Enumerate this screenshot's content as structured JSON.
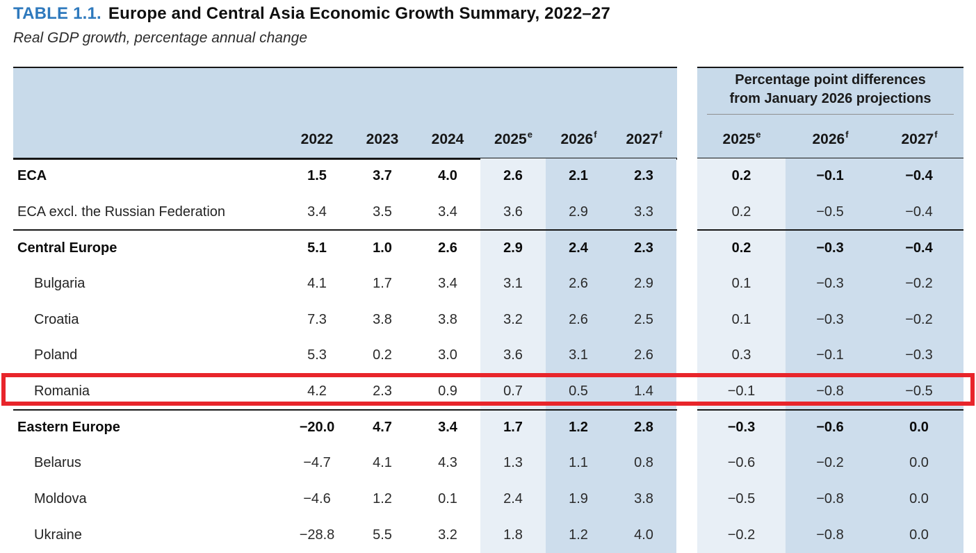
{
  "table": {
    "number": "TABLE 1.1.",
    "title": "Europe and Central Asia Economic Growth Summary, 2022–27",
    "subtitle": "Real GDP growth, percentage annual change",
    "right_panel_heading": {
      "line1": "Percentage point differences",
      "line2": "from January 2026 projections"
    },
    "year_columns": [
      {
        "base": "2022",
        "sup": ""
      },
      {
        "base": "2023",
        "sup": ""
      },
      {
        "base": "2024",
        "sup": ""
      },
      {
        "base": "2025",
        "sup": "e"
      },
      {
        "base": "2026",
        "sup": "f"
      },
      {
        "base": "2027",
        "sup": "f"
      }
    ],
    "diff_columns": [
      {
        "base": "2025",
        "sup": "e"
      },
      {
        "base": "2026",
        "sup": "f"
      },
      {
        "base": "2027",
        "sup": "f"
      }
    ],
    "rows": [
      {
        "label": "ECA",
        "bold": true,
        "indent": false,
        "values": [
          "1.5",
          "3.7",
          "4.0",
          "2.6",
          "2.1",
          "2.3"
        ],
        "diffs": [
          "0.2",
          "−0.1",
          "−0.4"
        ]
      },
      {
        "label": "ECA excl. the Russian Federation",
        "bold": false,
        "indent": false,
        "values": [
          "3.4",
          "3.5",
          "3.4",
          "3.6",
          "2.9",
          "3.3"
        ],
        "diffs": [
          "0.2",
          "−0.5",
          "−0.4"
        ]
      },
      {
        "label": "Central Europe",
        "bold": true,
        "indent": false,
        "values": [
          "5.1",
          "1.0",
          "2.6",
          "2.9",
          "2.4",
          "2.3"
        ],
        "diffs": [
          "0.2",
          "−0.3",
          "−0.4"
        ]
      },
      {
        "label": "Bulgaria",
        "bold": false,
        "indent": true,
        "values": [
          "4.1",
          "1.7",
          "3.4",
          "3.1",
          "2.6",
          "2.9"
        ],
        "diffs": [
          "0.1",
          "−0.3",
          "−0.2"
        ]
      },
      {
        "label": "Croatia",
        "bold": false,
        "indent": true,
        "values": [
          "7.3",
          "3.8",
          "3.8",
          "3.2",
          "2.6",
          "2.5"
        ],
        "diffs": [
          "0.1",
          "−0.3",
          "−0.2"
        ]
      },
      {
        "label": "Poland",
        "bold": false,
        "indent": true,
        "values": [
          "5.3",
          "0.2",
          "3.0",
          "3.6",
          "3.1",
          "2.6"
        ],
        "diffs": [
          "0.3",
          "−0.1",
          "−0.3"
        ]
      },
      {
        "label": "Romania",
        "bold": false,
        "indent": true,
        "highlighted": true,
        "values": [
          "4.2",
          "2.3",
          "0.9",
          "0.7",
          "0.5",
          "1.4"
        ],
        "diffs": [
          "−0.1",
          "−0.8",
          "−0.5"
        ]
      },
      {
        "label": "Eastern Europe",
        "bold": true,
        "indent": false,
        "values": [
          "−20.0",
          "4.7",
          "3.4",
          "1.7",
          "1.2",
          "2.8"
        ],
        "diffs": [
          "−0.3",
          "−0.6",
          "0.0"
        ]
      },
      {
        "label": "Belarus",
        "bold": false,
        "indent": true,
        "values": [
          "−4.7",
          "4.1",
          "4.3",
          "1.3",
          "1.1",
          "0.8"
        ],
        "diffs": [
          "−0.6",
          "−0.2",
          "0.0"
        ]
      },
      {
        "label": "Moldova",
        "bold": false,
        "indent": true,
        "values": [
          "−4.6",
          "1.2",
          "0.1",
          "2.4",
          "1.9",
          "3.8"
        ],
        "diffs": [
          "−0.5",
          "−0.8",
          "0.0"
        ]
      },
      {
        "label": "Ukraine",
        "bold": false,
        "indent": true,
        "values": [
          "−28.8",
          "5.5",
          "3.2",
          "1.8",
          "1.2",
          "4.0"
        ],
        "diffs": [
          "−0.2",
          "−0.8",
          "0.0"
        ]
      }
    ]
  },
  "highlight": {
    "row_label": "Romania",
    "color": "#e8252b"
  },
  "colors": {
    "header_bg": "#c8daea",
    "light_column": "#e8eff6",
    "dark_column": "#cdddec",
    "title_accent": "#2e79bd",
    "rule": "#161616",
    "divider_line": "#8f8f8f"
  }
}
